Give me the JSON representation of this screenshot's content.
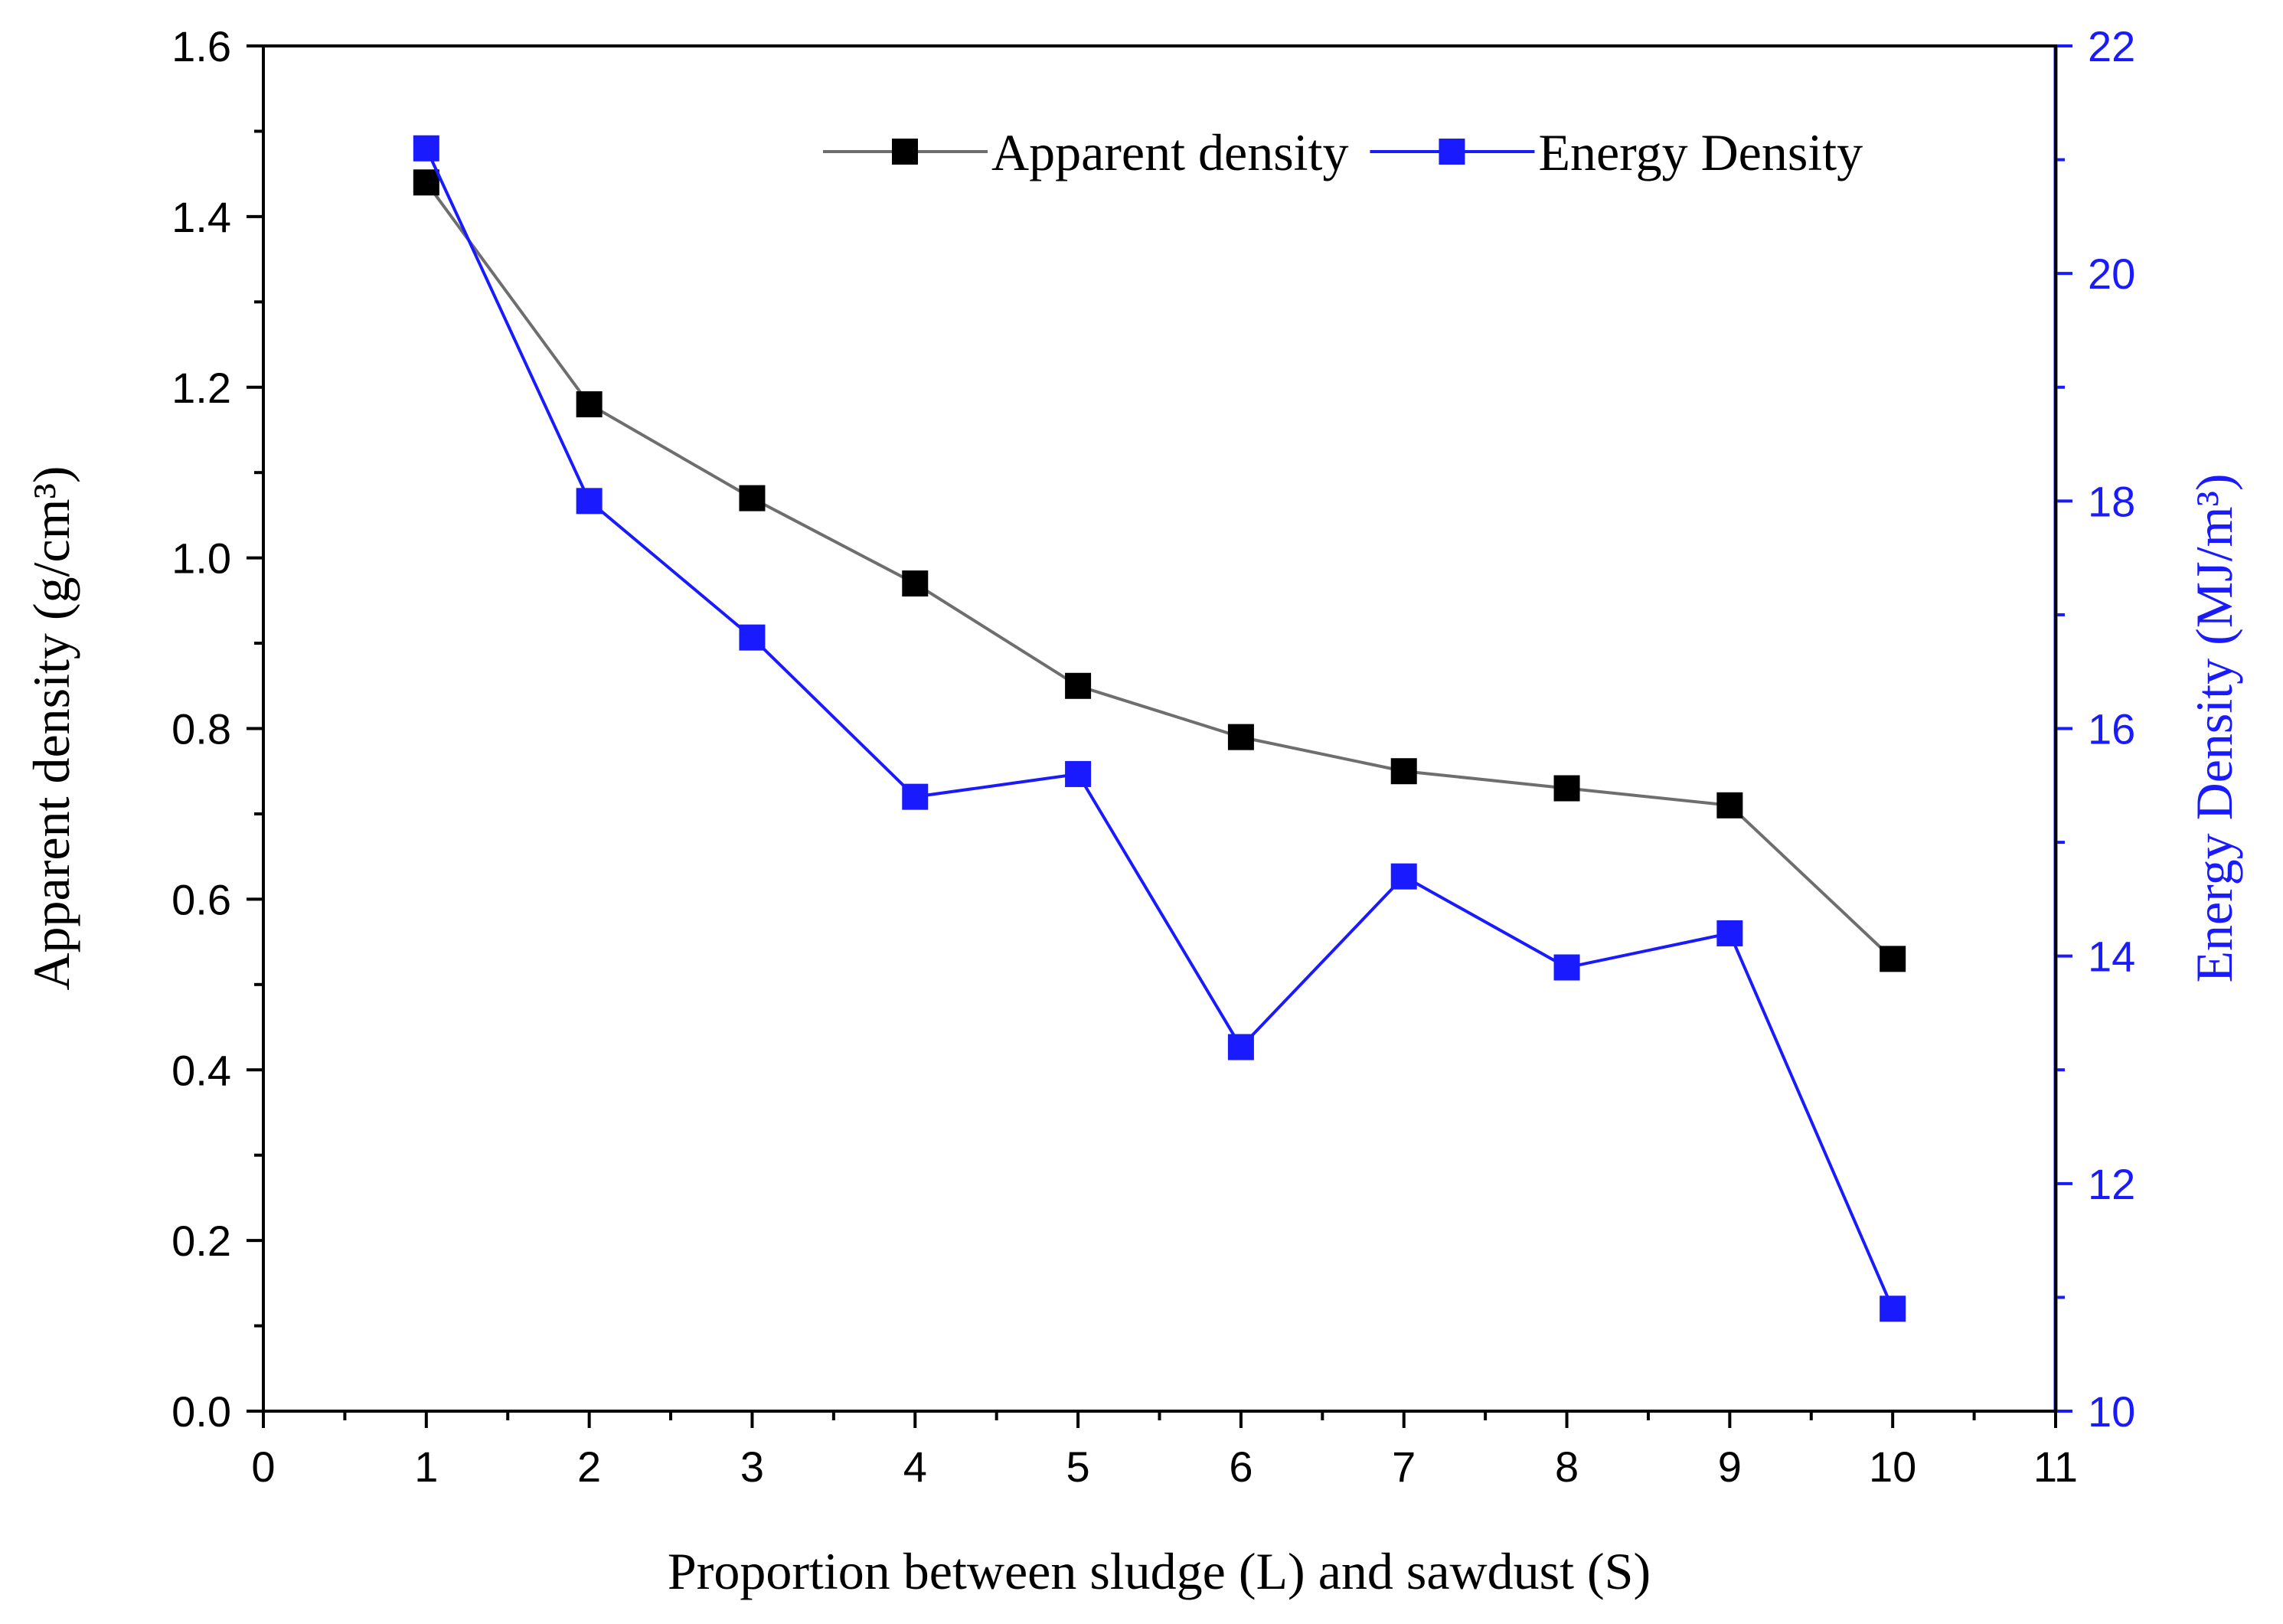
{
  "chart_data": {
    "type": "line",
    "x": [
      1,
      2,
      3,
      4,
      5,
      6,
      7,
      8,
      9,
      10
    ],
    "xlabel": "Proportion between sludge (L) and sawdust (S)",
    "xlim": [
      0,
      11
    ],
    "xticks": [
      "0",
      "1",
      "2",
      "3",
      "4",
      "5",
      "6",
      "7",
      "8",
      "9",
      "10",
      "11"
    ],
    "y_left": {
      "label": "Apparent density (g/cm³)",
      "lim": [
        0,
        1.6
      ],
      "ticks": [
        "0.0",
        "0.2",
        "0.4",
        "0.6",
        "0.8",
        "1.0",
        "1.2",
        "1.4",
        "1.6"
      ]
    },
    "y_right": {
      "label": "Energy Density (MJ/m³)",
      "lim": [
        10,
        22
      ],
      "ticks": [
        "10",
        "12",
        "14",
        "16",
        "18",
        "20",
        "22"
      ],
      "color": "#1a1aff"
    },
    "series": [
      {
        "name": "Apparent density",
        "axis": "left",
        "line_color": "#6e6e6e",
        "marker_color": "#000000",
        "values": [
          1.44,
          1.18,
          1.07,
          0.97,
          0.85,
          0.79,
          0.75,
          0.73,
          0.71,
          0.53
        ]
      },
      {
        "name": "Energy Density",
        "axis": "right",
        "line_color": "#1a1aff",
        "marker_color": "#1a1aff",
        "values": [
          21.1,
          18.0,
          16.8,
          15.4,
          15.6,
          13.2,
          14.7,
          13.9,
          14.2,
          10.9
        ]
      }
    ],
    "legend_position": "top-right",
    "grid": false
  }
}
